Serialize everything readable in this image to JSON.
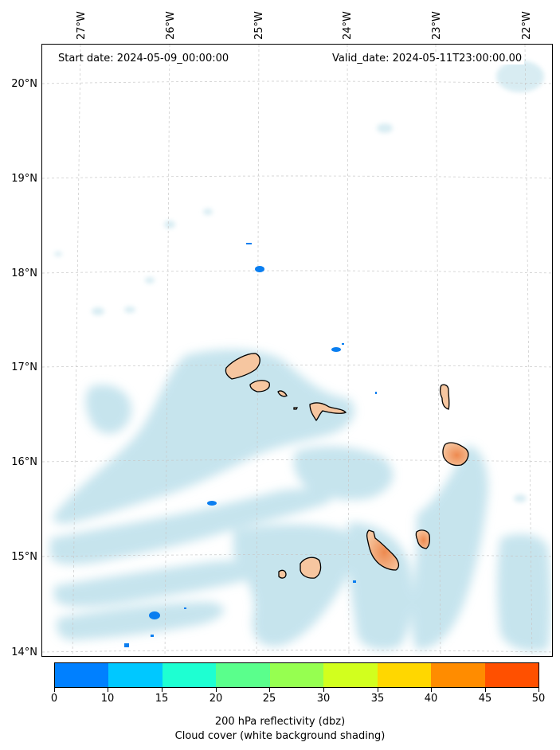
{
  "header": {
    "start_date": "Start date: 2024-05-09_00:00:00",
    "valid_date": "Valid_date: 2024-05-11T23:00:00.00"
  },
  "axes": {
    "lon_labels": [
      "27°W",
      "26°W",
      "25°W",
      "24°W",
      "23°W",
      "22°W"
    ],
    "lat_labels": [
      "20°N",
      "19°N",
      "18°N",
      "17°N",
      "16°N",
      "15°N",
      "14°N"
    ]
  },
  "colorbar": {
    "ticks": [
      "0",
      "10",
      "15",
      "20",
      "25",
      "30",
      "35",
      "40",
      "45",
      "50"
    ],
    "colors": [
      "#0080ff",
      "#00c8ff",
      "#1effd2",
      "#5aff8c",
      "#96ff50",
      "#d2ff1e",
      "#ffd700",
      "#ff8c00",
      "#ff5000"
    ]
  },
  "caption": {
    "line1": "200 hPa reflectivity (dbz)",
    "line2": "Cloud cover (white background shading)"
  },
  "colors": {
    "cloud": "#b3dbe8",
    "land": "#f6c6a0",
    "land_hot": "#ee8a50",
    "echo": "#0a7ef0",
    "grid": "#c8c8c8"
  }
}
